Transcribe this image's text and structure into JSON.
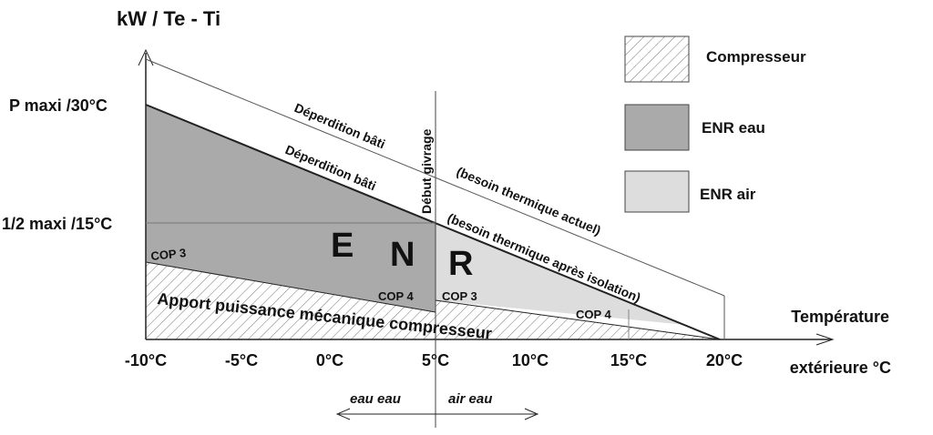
{
  "axis": {
    "y_title": "kW / Te - Ti",
    "y_labels": [
      "P maxi /30°C",
      "1/2 maxi /15°C"
    ],
    "x_labels": [
      "-10°C",
      "-5°C",
      "0°C",
      "5°C",
      "10°C",
      "15°C",
      "20°C"
    ],
    "x_title": [
      "Température",
      "extérieure °C"
    ]
  },
  "legend": [
    "Compresseur",
    "ENR  eau",
    "ENR  air"
  ],
  "annotations": {
    "deperdition_1": "Déperdition bâti",
    "deperdition_2": "Déperdition bâti",
    "besoin_actuel": "(besoin thermique actuel)",
    "besoin_isolation": "(besoin thermique après isolation)",
    "debut_givrage": "Début givrage",
    "enr": [
      "E",
      "N",
      "R"
    ],
    "cop": [
      "COP 3",
      "COP 4",
      "COP 3",
      "COP 4"
    ],
    "apport": "Apport puissance mécanique compresseur",
    "modes": [
      "eau eau",
      "air  eau"
    ]
  }
}
